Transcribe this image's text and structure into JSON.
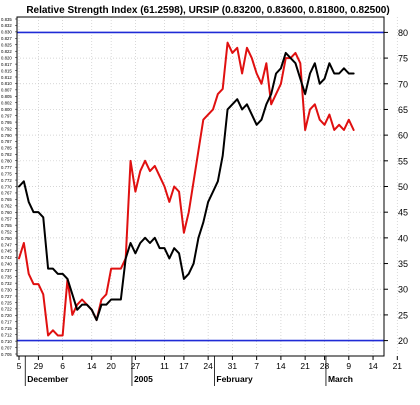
{
  "chart_data": {
    "type": "line",
    "title": "Relative Strength Index (61.2598), URSIP (0.83200, 0.83600, 0.81800, 0.82500)",
    "xlabel": "",
    "ylabel": "",
    "ylim": [
      17,
      83
    ],
    "left_ylim": [
      0.705,
      0.835
    ],
    "grid": true,
    "legend": "none",
    "reference_lines": [
      {
        "value": 80,
        "color": "#1f2bd6"
      },
      {
        "value": 20,
        "color": "#1f2bd6"
      }
    ],
    "x_ticks": [
      "5",
      "29",
      "6",
      "14",
      "20",
      "27",
      "11",
      "17",
      "24",
      "31",
      "7",
      "14",
      "21",
      "28",
      "9",
      "14",
      "21"
    ],
    "x_tick_index": [
      0,
      4,
      9,
      15,
      19,
      24,
      30,
      34,
      39,
      44,
      49,
      54,
      59,
      63,
      68,
      73,
      78
    ],
    "x_months": [
      {
        "label": "December",
        "index": 5
      },
      {
        "label": "2005",
        "index": 27
      },
      {
        "label": "February",
        "index": 44
      },
      {
        "label": "March",
        "index": 67
      }
    ],
    "y_ticks_right": [
      20,
      25,
      30,
      35,
      40,
      45,
      50,
      55,
      60,
      65,
      70,
      75,
      80
    ],
    "y_ticks_left": [
      "0.835",
      "0.832",
      "0.830",
      "0.827",
      "0.825",
      "0.822",
      "0.820",
      "0.817",
      "0.815",
      "0.812",
      "0.810",
      "0.807",
      "0.805",
      "0.802",
      "0.800",
      "0.797",
      "0.795",
      "0.792",
      "0.790",
      "0.787",
      "0.785",
      "0.782",
      "0.780",
      "0.777",
      "0.775",
      "0.772",
      "0.770",
      "0.767",
      "0.765",
      "0.762",
      "0.760",
      "0.757",
      "0.755",
      "0.752",
      "0.750",
      "0.747",
      "0.745",
      "0.742",
      "0.740",
      "0.737",
      "0.735",
      "0.732",
      "0.730",
      "0.727",
      "0.725",
      "0.722",
      "0.720",
      "0.717",
      "0.715",
      "0.712",
      "0.710",
      "0.707",
      "0.705"
    ],
    "series": [
      {
        "color": "#e01010",
        "x": [
          0,
          1,
          2,
          3,
          4,
          5,
          6,
          7,
          8,
          9,
          10,
          11,
          12,
          13,
          14,
          15,
          16,
          17,
          18,
          19,
          20,
          21,
          22,
          23,
          24,
          25,
          26,
          27,
          28,
          29,
          30,
          31,
          32,
          33,
          34,
          35,
          36,
          37,
          38,
          39,
          40,
          41,
          42,
          43,
          44,
          45,
          46,
          47,
          48,
          49,
          50,
          51,
          52,
          53,
          54,
          55,
          56,
          57,
          58,
          59,
          60,
          61,
          62,
          63,
          64,
          65,
          66,
          67,
          68,
          69
        ],
        "values": [
          36,
          39,
          33,
          31,
          31,
          29,
          21,
          22,
          21,
          21,
          32,
          25,
          27,
          28,
          27,
          26,
          24,
          28,
          29,
          34,
          34,
          34,
          36,
          55,
          49,
          53,
          55,
          53,
          54,
          52,
          50,
          47,
          50,
          49,
          41,
          45,
          51,
          57,
          63,
          64,
          65,
          68,
          69,
          78,
          76,
          77,
          72,
          77,
          75,
          72,
          70,
          74,
          66,
          68,
          70,
          75,
          75,
          76,
          74,
          61,
          65,
          66,
          63,
          62,
          64,
          61,
          62,
          61,
          63,
          61
        ]
      },
      {
        "color": "#000000",
        "x": [
          0,
          1,
          2,
          3,
          4,
          5,
          6,
          7,
          8,
          9,
          10,
          11,
          12,
          13,
          14,
          15,
          16,
          17,
          18,
          19,
          20,
          21,
          22,
          23,
          24,
          25,
          26,
          27,
          28,
          29,
          30,
          31,
          32,
          33,
          34,
          35,
          36,
          37,
          38,
          39,
          40,
          41,
          42,
          43,
          44,
          45,
          46,
          47,
          48,
          49,
          50,
          51,
          52,
          53,
          54,
          55,
          56,
          57,
          58,
          59,
          60,
          61,
          62,
          63,
          64,
          65,
          66,
          67,
          68,
          69
        ],
        "values": [
          50,
          51,
          47,
          45,
          45,
          44,
          34,
          34,
          33,
          33,
          32,
          29,
          26,
          27,
          27,
          26,
          24,
          27,
          27,
          28,
          28,
          28,
          36,
          39,
          37,
          39,
          40,
          39,
          40,
          38,
          38,
          36,
          38,
          37,
          32,
          33,
          35,
          40,
          43,
          47,
          49,
          51,
          56,
          65,
          66,
          67,
          65,
          66,
          64,
          62,
          63,
          66,
          68,
          72,
          73,
          76,
          75,
          74,
          71,
          68,
          72,
          74,
          70,
          71,
          74,
          72,
          72,
          73,
          72,
          72
        ]
      }
    ]
  }
}
